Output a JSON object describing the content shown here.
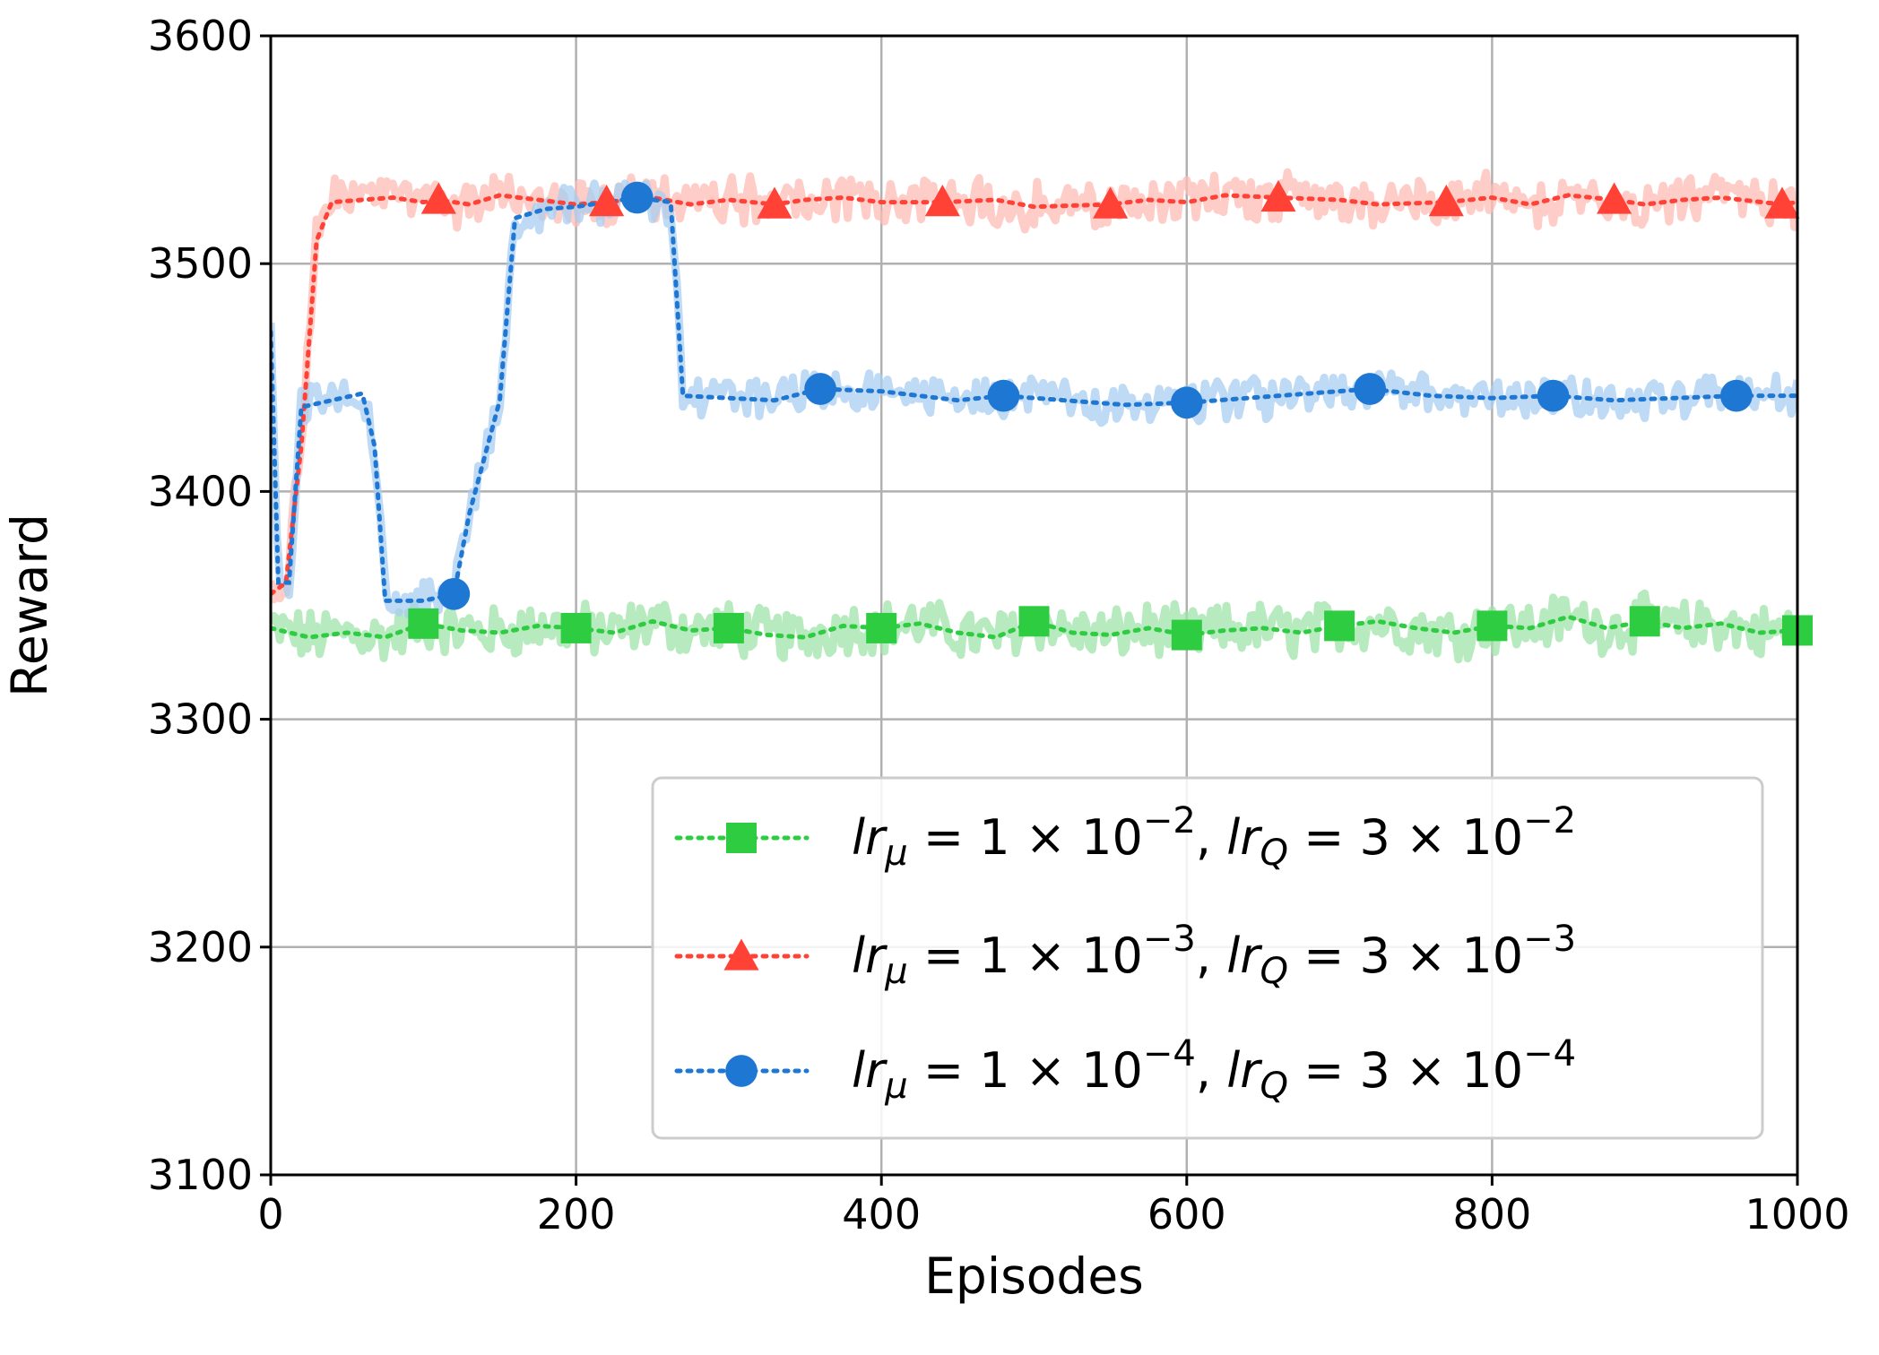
{
  "chart_data": {
    "type": "line",
    "title": "",
    "xlabel": "Episodes",
    "ylabel": "Reward",
    "xlim": [
      0,
      1000
    ],
    "ylim": [
      3100,
      3600
    ],
    "xticks": [
      0,
      200,
      400,
      600,
      800,
      1000
    ],
    "xtick_labels": [
      "0",
      "200",
      "400",
      "600",
      "800",
      "1000"
    ],
    "yticks": [
      3100,
      3200,
      3300,
      3400,
      3500,
      3600
    ],
    "ytick_labels": [
      "3100",
      "3200",
      "3300",
      "3400",
      "3500",
      "3600"
    ],
    "grid": true,
    "legend_position": "lower-right",
    "series": [
      {
        "name": "lr_μ = 1 × 10^−2, lr_Q = 3 × 10^−2",
        "legend": {
          "lr1": "lr",
          "sub1": "μ",
          "mid1": " = 1 × 10",
          "exp1": "−2",
          "sep": ", ",
          "lr2": "lr",
          "sub2": "Q",
          "mid2": " = 3 × 10",
          "exp2": "−2"
        },
        "color": "#2ecc40",
        "band_color": "#9fe4a9",
        "marker": "square",
        "marker_x": [
          100,
          200,
          300,
          400,
          500,
          600,
          700,
          800,
          900,
          1000
        ],
        "marker_y": [
          3342,
          3340,
          3340,
          3340,
          3343,
          3337,
          3341,
          3341,
          3343,
          3339
        ],
        "x": [
          0,
          25,
          50,
          75,
          100,
          125,
          150,
          175,
          200,
          225,
          250,
          275,
          300,
          325,
          350,
          375,
          400,
          425,
          450,
          475,
          500,
          525,
          550,
          575,
          600,
          625,
          650,
          675,
          700,
          725,
          750,
          775,
          800,
          825,
          850,
          875,
          900,
          925,
          950,
          975,
          1000
        ],
        "y": [
          3340,
          3336,
          3338,
          3336,
          3342,
          3339,
          3338,
          3341,
          3340,
          3338,
          3343,
          3339,
          3340,
          3337,
          3336,
          3341,
          3340,
          3342,
          3338,
          3336,
          3343,
          3338,
          3337,
          3340,
          3337,
          3339,
          3340,
          3338,
          3341,
          3343,
          3340,
          3338,
          3341,
          3340,
          3345,
          3340,
          3343,
          3340,
          3342,
          3338,
          3339
        ]
      },
      {
        "name": "lr_μ = 1 × 10^−3, lr_Q = 3 × 10^−3",
        "legend": {
          "lr1": "lr",
          "sub1": "μ",
          "mid1": " = 1 × 10",
          "exp1": "−3",
          "sep": ", ",
          "lr2": "lr",
          "sub2": "Q",
          "mid2": " = 3 × 10",
          "exp2": "−3"
        },
        "color": "#ff4136",
        "band_color": "#ffbcb6",
        "marker": "triangle",
        "marker_x": [
          110,
          220,
          330,
          440,
          550,
          660,
          770,
          880,
          990
        ],
        "marker_y": [
          3528,
          3527,
          3526,
          3527,
          3526,
          3529,
          3527,
          3528,
          3526
        ],
        "x": [
          0,
          10,
          20,
          30,
          40,
          60,
          80,
          100,
          110,
          130,
          150,
          175,
          200,
          220,
          250,
          275,
          300,
          330,
          350,
          375,
          400,
          440,
          475,
          500,
          550,
          575,
          600,
          625,
          660,
          700,
          725,
          770,
          800,
          825,
          850,
          880,
          900,
          925,
          950,
          990,
          1000
        ],
        "y": [
          3355,
          3360,
          3420,
          3510,
          3527,
          3528,
          3529,
          3527,
          3528,
          3526,
          3530,
          3528,
          3526,
          3527,
          3529,
          3526,
          3528,
          3526,
          3528,
          3529,
          3527,
          3527,
          3528,
          3525,
          3526,
          3528,
          3527,
          3530,
          3529,
          3528,
          3526,
          3527,
          3529,
          3526,
          3530,
          3528,
          3526,
          3528,
          3529,
          3526,
          3527
        ]
      },
      {
        "name": "lr_μ = 1 × 10^−4, lr_Q = 3 × 10^−4",
        "legend": {
          "lr1": "lr",
          "sub1": "μ",
          "mid1": " = 1 × 10",
          "exp1": "−4",
          "sep": ", ",
          "lr2": "lr",
          "sub2": "Q",
          "mid2": " = 3 × 10",
          "exp2": "−4"
        },
        "color": "#1f77d4",
        "band_color": "#a8cdf0",
        "marker": "circle",
        "marker_x": [
          120,
          240,
          360,
          480,
          600,
          720,
          840,
          960
        ],
        "marker_y": [
          3355,
          3529,
          3445,
          3442,
          3439,
          3445,
          3442,
          3442
        ],
        "x": [
          0,
          5,
          12,
          20,
          40,
          60,
          68,
          75,
          100,
          120,
          130,
          150,
          160,
          180,
          200,
          220,
          240,
          262,
          270,
          300,
          330,
          360,
          400,
          450,
          480,
          520,
          560,
          600,
          640,
          680,
          720,
          760,
          800,
          840,
          880,
          920,
          960,
          1000
        ],
        "y": [
          3470,
          3360,
          3360,
          3437,
          3440,
          3443,
          3420,
          3352,
          3352,
          3355,
          3390,
          3440,
          3520,
          3524,
          3525,
          3527,
          3529,
          3527,
          3442,
          3441,
          3440,
          3445,
          3444,
          3440,
          3442,
          3440,
          3438,
          3439,
          3441,
          3443,
          3445,
          3442,
          3441,
          3442,
          3440,
          3441,
          3442,
          3442
        ]
      }
    ]
  }
}
